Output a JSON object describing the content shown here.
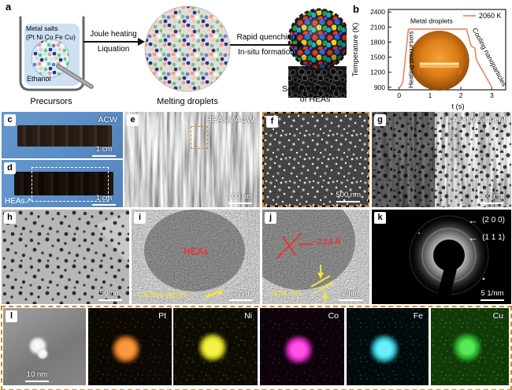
{
  "panel_a": {
    "letter": "a",
    "metal_salts_line1": "Metal salts",
    "metal_salts_line2": "(Pt Ni Co Fe Cu)",
    "ethanol": "Ethanol",
    "precursors_caption": "Precursors",
    "arrow1_top": "Joule heating",
    "arrow1_bottom": "Liquation",
    "melting_caption": "Melting droplets",
    "arrow2_top": "Rapid quenching",
    "arrow2_bottom": "In-situ formation",
    "product_caption_line1": "Self-encapsulaton",
    "product_caption_line2": "of HEAs"
  },
  "panel_b": {
    "letter": "b"
  },
  "chart_data": {
    "type": "line",
    "title": "",
    "xlabel": "t (s)",
    "ylabel": "Temperature (K)",
    "xlim": [
      -0.35,
      3.45
    ],
    "ylim": [
      850,
      2450
    ],
    "xticks": [
      0,
      1,
      2,
      3
    ],
    "yticks": [
      900,
      1200,
      1500,
      1800,
      2100,
      2400
    ],
    "legend_label": "2060 K",
    "legend_position": "top-right",
    "grid": false,
    "annotations": [
      "Heating precursors",
      "Metal droplets",
      "Cooling nanoparticles"
    ],
    "series": [
      {
        "name": "2060 K",
        "color": "#e58568",
        "x": [
          0.03,
          0.12,
          0.3,
          2.18,
          2.33,
          2.45,
          2.5,
          3.0
        ],
        "y": [
          900,
          1000,
          2060,
          2060,
          1720,
          1680,
          1450,
          900
        ]
      }
    ]
  },
  "panel_c": {
    "letter": "c",
    "label": "ACW",
    "scale": "1 cm"
  },
  "panel_d": {
    "letter": "d",
    "label": "HEAs",
    "arrow": "↗",
    "scale": "1 cm"
  },
  "panel_e": {
    "letter": "e",
    "label": "HEAs@ACW",
    "scale": "100 μm"
  },
  "panel_f": {
    "letter": "f",
    "scale": "500 nm"
  },
  "panel_g": {
    "letter": "g",
    "label": "Acid treatment",
    "scale": "500 nm"
  },
  "panel_h": {
    "letter": "h",
    "scale": "50 nm"
  },
  "panel_i": {
    "letter": "i",
    "label_hea": "HEAs",
    "label_carbon": "Carbon layers",
    "scale": "2 nm"
  },
  "panel_j": {
    "letter": "j",
    "spacing_red": "~2.14 Å",
    "spacing_yellow": "~0.34 nm",
    "scale": "2 nm"
  },
  "panel_k": {
    "letter": "k",
    "ring_200": "(2 0 0)",
    "ring_111": "(1 1 1)",
    "arrow": "←",
    "scale": "5  1/nm"
  },
  "panel_l": {
    "letter": "l",
    "scale": "10 nm"
  },
  "eds_maps": [
    {
      "label": "Pt",
      "color": "#f08428"
    },
    {
      "label": "Ni",
      "color": "#e6e428"
    },
    {
      "label": "Co",
      "color": "#ee2ed2"
    },
    {
      "label": "Fe",
      "color": "#3ad8e6"
    },
    {
      "label": "Cu",
      "color": "#32c832"
    }
  ],
  "colors": {
    "photo_background_blue": "#5b8ec6",
    "accent_dashed_orange": "#d4892f",
    "curve_coral": "#e58568",
    "hea_text_red": "#e8372c",
    "carbon_text_yellow": "#f2e43a"
  }
}
